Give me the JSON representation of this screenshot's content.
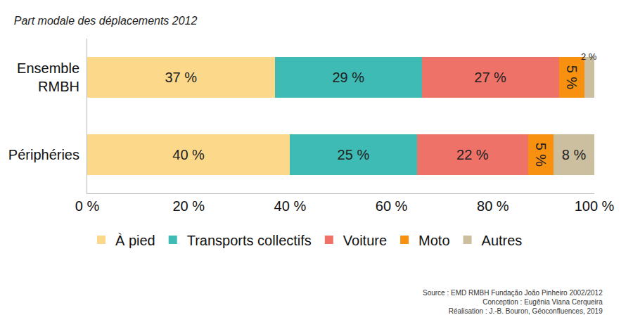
{
  "chart_data": {
    "type": "bar",
    "title": "Part modale des déplacements 2012",
    "orientation": "horizontal",
    "stacked": true,
    "data_labels": true,
    "grid": false,
    "legend": "bottom",
    "categories": [
      "Ensemble RMBH",
      "Périphéries"
    ],
    "series": [
      {
        "name": "À pied",
        "color": "#fcd98a",
        "values": [
          37,
          40
        ],
        "value_labels": [
          "37 %",
          "40 %"
        ]
      },
      {
        "name": "Transports collectifs",
        "color": "#3dbbb4",
        "values": [
          29,
          25
        ],
        "value_labels": [
          "29 %",
          "25 %"
        ]
      },
      {
        "name": "Voiture",
        "color": "#ee7268",
        "values": [
          27,
          22
        ],
        "value_labels": [
          "27 %",
          "22 %"
        ]
      },
      {
        "name": "Moto",
        "color": "#f7910f",
        "values": [
          5,
          5
        ],
        "value_labels": [
          "5 %",
          "5 %"
        ]
      },
      {
        "name": "Autres",
        "color": "#cbbf9f",
        "values": [
          2,
          8
        ],
        "value_labels": [
          "2 %",
          "8 %"
        ]
      }
    ],
    "xlim": [
      0,
      100
    ],
    "xticks": [
      {
        "value": 0,
        "label": "0 %"
      },
      {
        "value": 20,
        "label": "20 %"
      },
      {
        "value": 40,
        "label": "40 %"
      },
      {
        "value": 60,
        "label": "60 %"
      },
      {
        "value": 80,
        "label": "80 %"
      },
      {
        "value": 100,
        "label": "100 %"
      }
    ],
    "annotations": [
      "Source : EMD RMBH Fundação João Pinheiro 2002/2012",
      "Conception : Eugênia Viana Cerqueira",
      "Réalisation : J.-B. Bouron, Géoconfluences, 2019"
    ]
  }
}
